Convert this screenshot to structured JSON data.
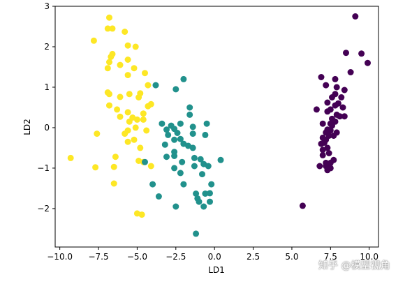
{
  "chart_data": {
    "type": "scatter",
    "xlabel": "LD1",
    "ylabel": "LD2",
    "xlim": [
      -10.3,
      10.6
    ],
    "ylim": [
      -2.95,
      3.0
    ],
    "xticks": [
      -10.0,
      -7.5,
      -5.0,
      -2.5,
      0.0,
      2.5,
      5.0,
      7.5,
      10.0
    ],
    "xtick_labels": [
      "−10.0",
      "−7.5",
      "−5.0",
      "−2.5",
      "0.0",
      "2.5",
      "5.0",
      "7.5",
      "10.0"
    ],
    "yticks": [
      -2,
      -1,
      0,
      1,
      2,
      3
    ],
    "ytick_labels": [
      "−2",
      "−1",
      "0",
      "1",
      "2",
      "3"
    ],
    "grid": false,
    "series": [
      {
        "color": "#fde725",
        "points": [
          [
            -6.8,
            2.72
          ],
          [
            -6.9,
            2.45
          ],
          [
            -6.6,
            2.45
          ],
          [
            -5.8,
            2.37
          ],
          [
            -7.8,
            2.15
          ],
          [
            -5.6,
            2.03
          ],
          [
            -5.1,
            2.0
          ],
          [
            -6.6,
            1.82
          ],
          [
            -6.7,
            1.75
          ],
          [
            -5.6,
            1.68
          ],
          [
            -6.8,
            1.62
          ],
          [
            -6.1,
            1.55
          ],
          [
            -6.9,
            1.47
          ],
          [
            -5.2,
            1.47
          ],
          [
            -4.5,
            1.35
          ],
          [
            -5.6,
            1.3
          ],
          [
            -6.9,
            0.87
          ],
          [
            -6.8,
            0.83
          ],
          [
            -5.5,
            0.83
          ],
          [
            -4.8,
            0.85
          ],
          [
            -4.3,
            1.05
          ],
          [
            -4.9,
            0.75
          ],
          [
            -6.1,
            0.76
          ],
          [
            -6.8,
            0.55
          ],
          [
            -4.1,
            0.58
          ],
          [
            -4.3,
            0.53
          ],
          [
            -6.3,
            0.45
          ],
          [
            -5.6,
            0.38
          ],
          [
            -4.6,
            0.35
          ],
          [
            -6.1,
            0.27
          ],
          [
            -5.3,
            0.25
          ],
          [
            -4.6,
            0.2
          ],
          [
            -5.0,
            0.2
          ],
          [
            -5.5,
            0.15
          ],
          [
            -5.1,
            0.0
          ],
          [
            -5.6,
            -0.07
          ],
          [
            -4.4,
            -0.07
          ],
          [
            -7.6,
            -0.15
          ],
          [
            -5.8,
            -0.15
          ],
          [
            -5.2,
            -0.3
          ],
          [
            -5.6,
            -0.35
          ],
          [
            -4.8,
            -0.5
          ],
          [
            -9.3,
            -0.75
          ],
          [
            -6.4,
            -0.72
          ],
          [
            -4.9,
            -0.82
          ],
          [
            -4.6,
            -0.85
          ],
          [
            -7.7,
            -0.98
          ],
          [
            -6.5,
            -0.97
          ],
          [
            -4.1,
            -0.95
          ],
          [
            -6.5,
            -1.38
          ],
          [
            -5.0,
            -2.12
          ],
          [
            -4.7,
            -2.15
          ]
        ]
      },
      {
        "color": "#21918c",
        "points": [
          [
            -2.0,
            1.2
          ],
          [
            -3.8,
            1.05
          ],
          [
            -2.5,
            0.95
          ],
          [
            -1.6,
            0.5
          ],
          [
            -1.6,
            0.32
          ],
          [
            -2.2,
            0.1
          ],
          [
            -3.4,
            0.1
          ],
          [
            -2.8,
            0.05
          ],
          [
            -2.6,
            -0.03
          ],
          [
            -1.4,
            0.02
          ],
          [
            -0.5,
            0.1
          ],
          [
            -3.1,
            -0.05
          ],
          [
            -2.4,
            -0.13
          ],
          [
            -1.4,
            -0.15
          ],
          [
            -3.0,
            -0.18
          ],
          [
            -0.6,
            -0.18
          ],
          [
            -2.2,
            -0.28
          ],
          [
            -2.6,
            -0.3
          ],
          [
            -3.2,
            -0.42
          ],
          [
            -2.0,
            -0.4
          ],
          [
            -1.7,
            -0.45
          ],
          [
            -1.4,
            -0.5
          ],
          [
            -2.6,
            -0.6
          ],
          [
            -2.6,
            -0.7
          ],
          [
            -3.1,
            -0.72
          ],
          [
            -1.3,
            -0.75
          ],
          [
            -0.9,
            -0.78
          ],
          [
            -4.5,
            -0.85
          ],
          [
            -2.1,
            -0.85
          ],
          [
            -0.7,
            -0.9
          ],
          [
            -1.3,
            -0.95
          ],
          [
            -2.6,
            -1.0
          ],
          [
            -0.4,
            -0.95
          ],
          [
            -2.2,
            -1.12
          ],
          [
            -0.8,
            -1.15
          ],
          [
            0.4,
            -0.8
          ],
          [
            -4.0,
            -1.4
          ],
          [
            -2.0,
            -1.4
          ],
          [
            -0.2,
            -1.4
          ],
          [
            -3.6,
            -1.7
          ],
          [
            -1.2,
            -1.63
          ],
          [
            -0.6,
            -1.63
          ],
          [
            -0.3,
            -1.62
          ],
          [
            -1.1,
            -1.75
          ],
          [
            -1.0,
            -1.83
          ],
          [
            -0.3,
            -1.83
          ],
          [
            -2.5,
            -1.95
          ],
          [
            -0.7,
            -1.95
          ],
          [
            -1.2,
            -2.62
          ]
        ]
      },
      {
        "color": "#440154",
        "points": [
          [
            9.1,
            2.75
          ],
          [
            8.5,
            1.85
          ],
          [
            9.5,
            1.83
          ],
          [
            9.9,
            1.6
          ],
          [
            8.8,
            1.37
          ],
          [
            6.9,
            1.25
          ],
          [
            7.8,
            1.2
          ],
          [
            7.2,
            1.05
          ],
          [
            7.9,
            1.0
          ],
          [
            8.4,
            0.93
          ],
          [
            7.8,
            0.83
          ],
          [
            7.6,
            0.75
          ],
          [
            8.2,
            0.75
          ],
          [
            7.3,
            0.62
          ],
          [
            8.0,
            0.6
          ],
          [
            7.8,
            0.55
          ],
          [
            8.3,
            0.5
          ],
          [
            7.5,
            0.45
          ],
          [
            6.6,
            0.45
          ],
          [
            7.3,
            0.4
          ],
          [
            7.9,
            0.32
          ],
          [
            8.1,
            0.28
          ],
          [
            8.4,
            0.28
          ],
          [
            7.6,
            0.22
          ],
          [
            7.8,
            0.15
          ],
          [
            7.5,
            0.1
          ],
          [
            7.0,
            0.1
          ],
          [
            7.6,
            0.05
          ],
          [
            7.3,
            -0.05
          ],
          [
            7.5,
            -0.07
          ],
          [
            7.2,
            -0.12
          ],
          [
            7.9,
            -0.12
          ],
          [
            7.4,
            -0.2
          ],
          [
            7.7,
            -0.2
          ],
          [
            7.0,
            -0.25
          ],
          [
            7.2,
            -0.3
          ],
          [
            7.1,
            -0.37
          ],
          [
            6.9,
            -0.4
          ],
          [
            7.3,
            -0.5
          ],
          [
            7.0,
            -0.55
          ],
          [
            7.4,
            -0.63
          ],
          [
            7.0,
            -0.68
          ],
          [
            7.7,
            -0.8
          ],
          [
            7.2,
            -0.87
          ],
          [
            7.5,
            -0.87
          ],
          [
            6.8,
            -0.95
          ],
          [
            7.2,
            -0.95
          ],
          [
            7.5,
            -1.0
          ],
          [
            7.3,
            -1.05
          ],
          [
            5.7,
            -1.93
          ]
        ]
      }
    ]
  },
  "watermark": "知乎 @模型视角"
}
